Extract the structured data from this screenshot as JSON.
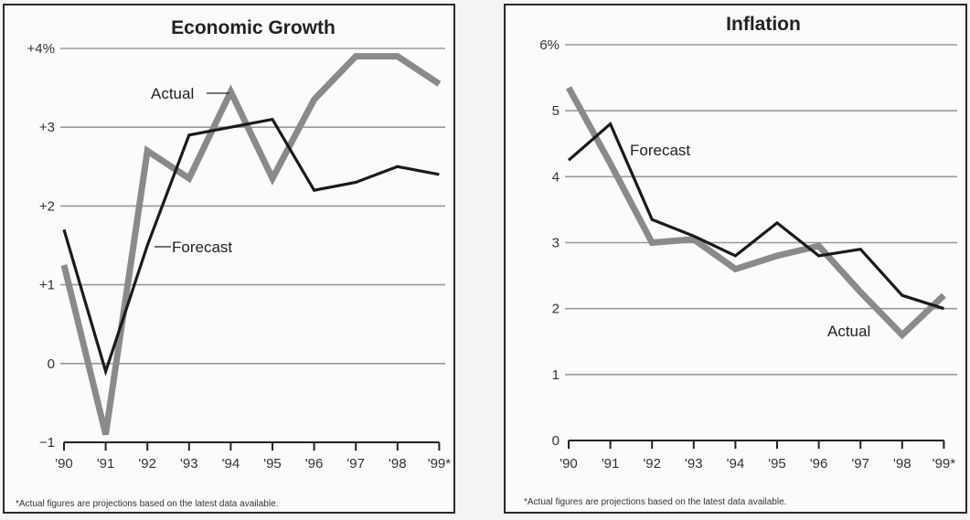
{
  "chart_data": [
    {
      "type": "line",
      "title": "Economic Growth",
      "categories": [
        "'90",
        "'91",
        "'92",
        "'93",
        "'94",
        "'95",
        "'96",
        "'97",
        "'98",
        "'99*"
      ],
      "ytick_labels": [
        "−1",
        "0",
        "+1",
        "+2",
        "+3",
        "+4%"
      ],
      "ytick_values": [
        -1,
        0,
        1,
        2,
        3,
        4
      ],
      "ylim": [
        -1,
        4
      ],
      "series": [
        {
          "name": "Actual",
          "color": "#8a8a8a",
          "values": [
            1.25,
            -0.9,
            2.7,
            2.35,
            3.45,
            2.35,
            3.35,
            3.9,
            3.9,
            3.55
          ]
        },
        {
          "name": "Forecast",
          "color": "#1a1a1a",
          "values": [
            1.7,
            -0.1,
            1.5,
            2.9,
            3.0,
            3.1,
            2.2,
            2.3,
            2.5,
            2.4
          ]
        }
      ],
      "footnote": "*Actual figures are projections based on the latest data available."
    },
    {
      "type": "line",
      "title": "Inflation",
      "categories": [
        "'90",
        "'91",
        "'92",
        "'93",
        "'94",
        "'95",
        "'96",
        "'97",
        "'98",
        "'99*"
      ],
      "ytick_labels": [
        "0",
        "1",
        "2",
        "3",
        "4",
        "5",
        "6%"
      ],
      "ytick_values": [
        0,
        1,
        2,
        3,
        4,
        5,
        6
      ],
      "ylim": [
        0,
        6
      ],
      "series": [
        {
          "name": "Actual",
          "color": "#8a8a8a",
          "values": [
            5.35,
            4.2,
            3.0,
            3.05,
            2.6,
            2.8,
            2.95,
            2.25,
            1.6,
            2.2
          ]
        },
        {
          "name": "Forecast",
          "color": "#1a1a1a",
          "values": [
            4.25,
            4.8,
            3.35,
            3.1,
            2.8,
            3.3,
            2.8,
            2.9,
            2.2,
            2.0
          ]
        }
      ],
      "footnote": "*Actual figures are projections based on the latest data available."
    }
  ]
}
